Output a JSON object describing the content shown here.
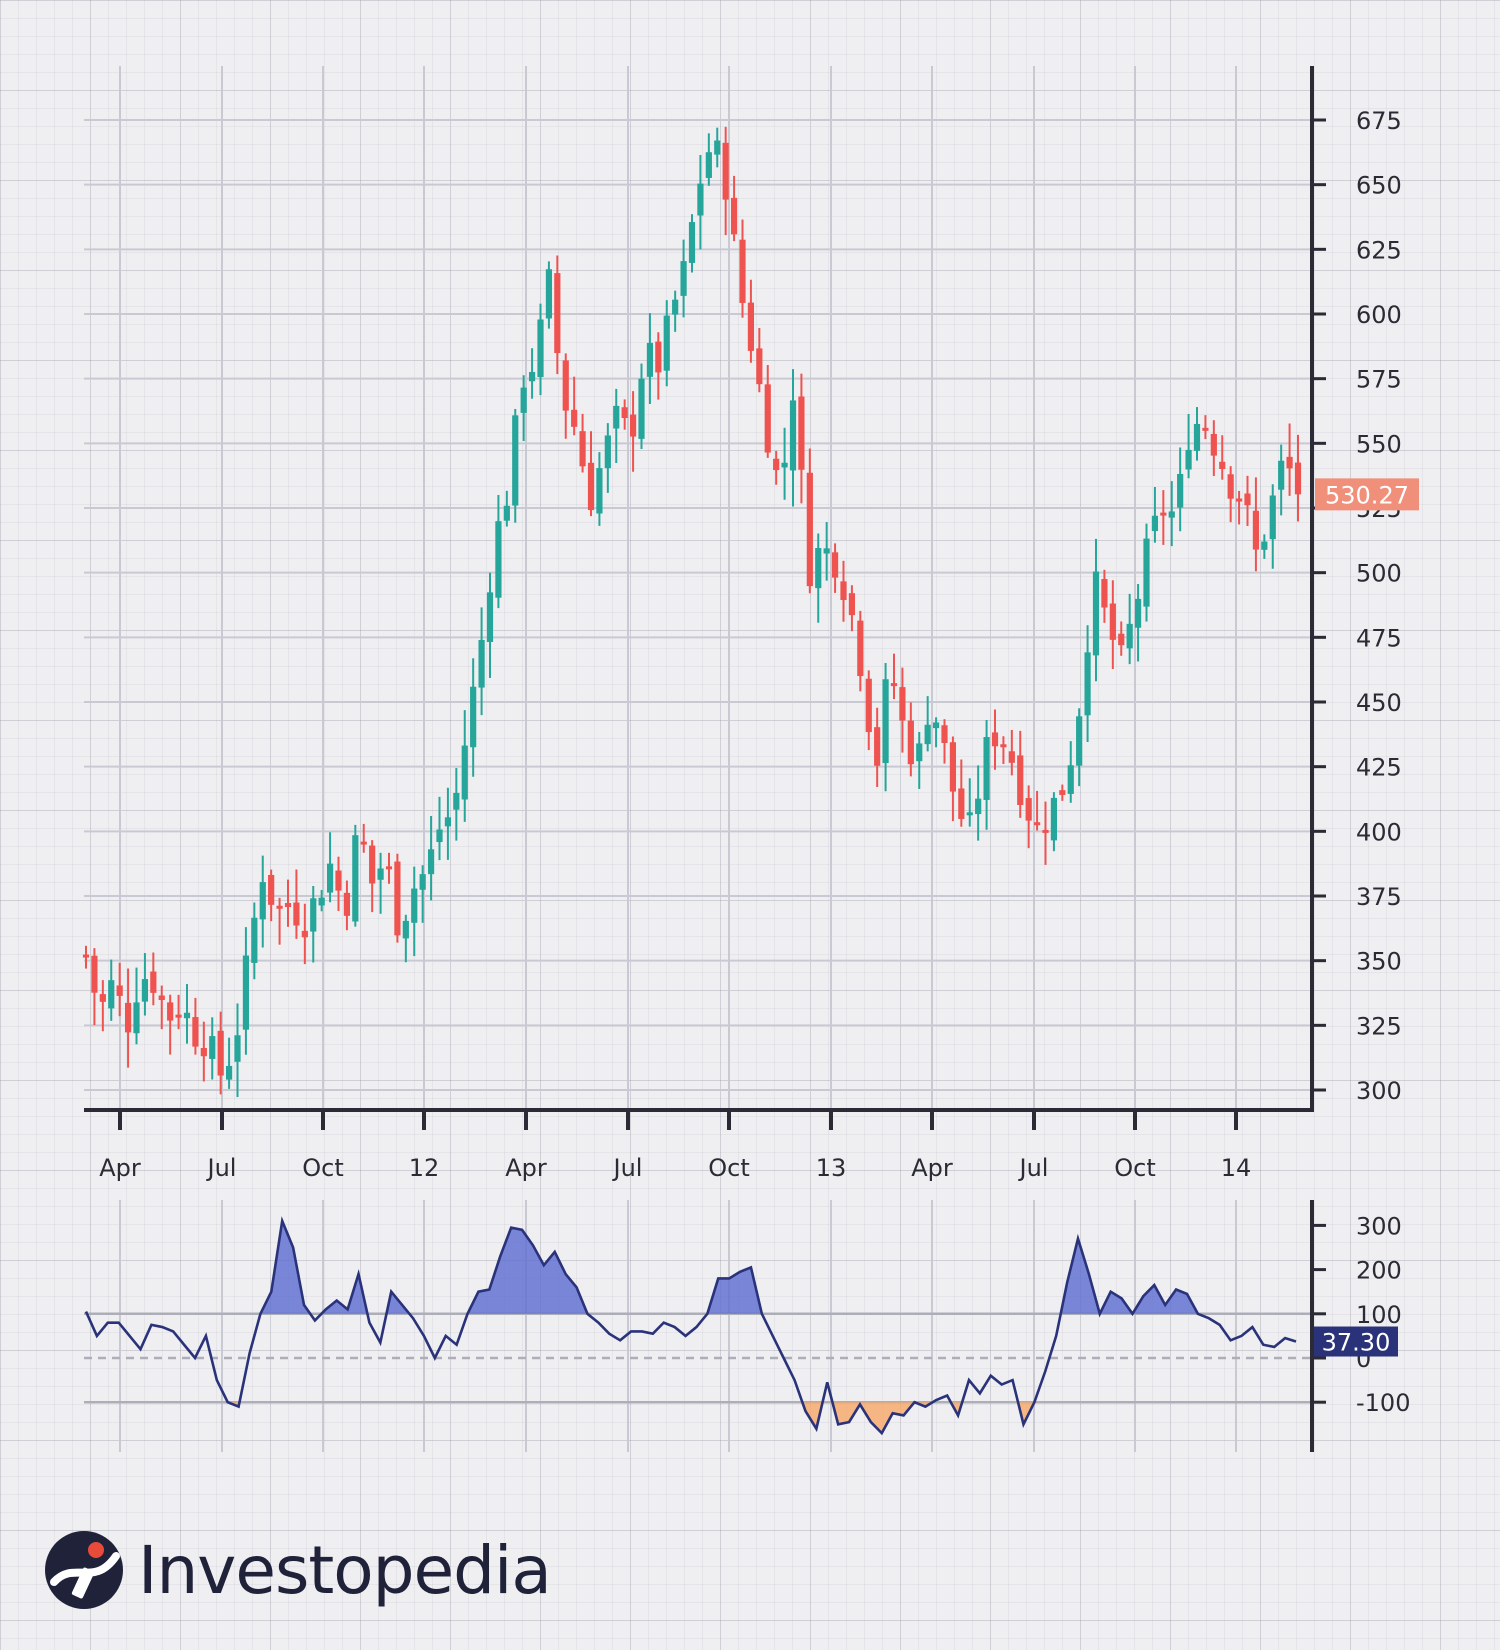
{
  "brand": {
    "name": "Investopedia"
  },
  "colors": {
    "up": "#26a69a",
    "down": "#ef5350",
    "cci_line": "#2a337a",
    "cci_fill_pos": "#5b6bd1",
    "cci_fill_neg": "#f7a766",
    "price_badge": "#f0907a",
    "cci_badge": "#2a337a",
    "axis": "#2b2b35"
  },
  "chart_data": [
    {
      "type": "candlestick",
      "title": "",
      "x_tick_labels": [
        "Apr",
        "Jul",
        "Oct",
        "12",
        "Apr",
        "Jul",
        "Oct",
        "13",
        "Apr",
        "Jul",
        "Oct",
        "14"
      ],
      "y_ticks": [
        300,
        325,
        350,
        375,
        400,
        425,
        450,
        475,
        500,
        525,
        550,
        575,
        600,
        625,
        650,
        675
      ],
      "ylim": [
        292,
        696
      ],
      "last_price_label": "530.27",
      "last_price": 530.27,
      "grid": true,
      "close_series": [
        [
          0,
          352
        ],
        [
          1,
          330
        ],
        [
          2,
          342
        ],
        [
          3,
          325
        ],
        [
          4,
          345
        ],
        [
          5,
          342
        ],
        [
          6,
          328
        ],
        [
          7,
          333
        ],
        [
          8,
          322
        ],
        [
          9,
          318
        ],
        [
          10,
          305
        ],
        [
          11,
          320
        ],
        [
          12,
          355
        ],
        [
          13,
          385
        ],
        [
          14,
          368
        ],
        [
          15,
          372
        ],
        [
          16,
          365
        ],
        [
          17,
          375
        ],
        [
          18,
          388
        ],
        [
          19,
          368
        ],
        [
          20,
          402
        ],
        [
          21,
          380
        ],
        [
          22,
          390
        ],
        [
          23,
          362
        ],
        [
          24,
          378
        ],
        [
          25,
          385
        ],
        [
          26,
          402
        ],
        [
          27,
          408
        ],
        [
          28,
          440
        ],
        [
          29,
          472
        ],
        [
          30,
          512
        ],
        [
          31,
          532
        ],
        [
          32,
          575
        ],
        [
          33,
          582
        ],
        [
          34,
          612
        ],
        [
          35,
          568
        ],
        [
          36,
          555
        ],
        [
          37,
          528
        ],
        [
          38,
          545
        ],
        [
          39,
          560
        ],
        [
          40,
          552
        ],
        [
          41,
          585
        ],
        [
          42,
          580
        ],
        [
          43,
          600
        ],
        [
          44,
          618
        ],
        [
          45,
          650
        ],
        [
          46,
          668
        ],
        [
          47,
          650
        ],
        [
          48,
          610
        ],
        [
          49,
          585
        ],
        [
          50,
          555
        ],
        [
          51,
          530
        ],
        [
          52,
          575
        ],
        [
          53,
          500
        ],
        [
          54,
          510
        ],
        [
          55,
          505
        ],
        [
          56,
          490
        ],
        [
          57,
          462
        ],
        [
          58,
          424
        ],
        [
          59,
          465
        ],
        [
          60,
          440
        ],
        [
          61,
          425
        ],
        [
          62,
          452
        ],
        [
          63,
          432
        ],
        [
          64,
          408
        ],
        [
          65,
          400
        ],
        [
          66,
          430
        ],
        [
          67,
          440
        ],
        [
          68,
          428
        ],
        [
          69,
          410
        ],
        [
          70,
          400
        ],
        [
          71,
          410
        ],
        [
          72,
          420
        ],
        [
          73,
          450
        ],
        [
          74,
          497
        ],
        [
          75,
          480
        ],
        [
          76,
          465
        ],
        [
          77,
          485
        ],
        [
          78,
          510
        ],
        [
          79,
          525
        ],
        [
          80,
          522
        ],
        [
          81,
          555
        ],
        [
          82,
          560
        ],
        [
          83,
          548
        ],
        [
          84,
          535
        ],
        [
          85,
          528
        ],
        [
          86,
          505
        ],
        [
          87,
          525
        ],
        [
          88,
          545
        ],
        [
          89,
          530
        ]
      ]
    },
    {
      "type": "line",
      "title": "",
      "y_ticks": [
        -100,
        0,
        100,
        200,
        300
      ],
      "ylim": [
        -210,
        360
      ],
      "reference_lines": [
        100,
        0,
        -100
      ],
      "last_value_label": "37.30",
      "last_value": 37.3,
      "series": [
        [
          0,
          105
        ],
        [
          1,
          50
        ],
        [
          2,
          80
        ],
        [
          3,
          80
        ],
        [
          4,
          50
        ],
        [
          5,
          20
        ],
        [
          6,
          75
        ],
        [
          7,
          70
        ],
        [
          8,
          60
        ],
        [
          9,
          30
        ],
        [
          10,
          0
        ],
        [
          11,
          50
        ],
        [
          12,
          -50
        ],
        [
          13,
          -100
        ],
        [
          14,
          -110
        ],
        [
          15,
          10
        ],
        [
          16,
          100
        ],
        [
          17,
          150
        ],
        [
          18,
          310
        ],
        [
          19,
          250
        ],
        [
          20,
          120
        ],
        [
          21,
          85
        ],
        [
          22,
          110
        ],
        [
          23,
          130
        ],
        [
          24,
          110
        ],
        [
          25,
          190
        ],
        [
          26,
          80
        ],
        [
          27,
          35
        ],
        [
          28,
          150
        ],
        [
          29,
          120
        ],
        [
          30,
          90
        ],
        [
          31,
          50
        ],
        [
          32,
          0
        ],
        [
          33,
          50
        ],
        [
          34,
          30
        ],
        [
          35,
          100
        ],
        [
          36,
          150
        ],
        [
          37,
          155
        ],
        [
          38,
          230
        ],
        [
          39,
          295
        ],
        [
          40,
          290
        ],
        [
          41,
          255
        ],
        [
          42,
          210
        ],
        [
          43,
          240
        ],
        [
          44,
          190
        ],
        [
          45,
          160
        ],
        [
          46,
          100
        ],
        [
          47,
          80
        ],
        [
          48,
          55
        ],
        [
          49,
          40
        ],
        [
          50,
          60
        ],
        [
          51,
          60
        ],
        [
          52,
          55
        ],
        [
          53,
          80
        ],
        [
          54,
          70
        ],
        [
          55,
          50
        ],
        [
          56,
          70
        ],
        [
          57,
          100
        ],
        [
          58,
          180
        ],
        [
          59,
          180
        ],
        [
          60,
          195
        ],
        [
          61,
          205
        ],
        [
          62,
          100
        ],
        [
          63,
          50
        ],
        [
          64,
          0
        ],
        [
          65,
          -50
        ],
        [
          66,
          -120
        ],
        [
          67,
          -160
        ],
        [
          68,
          -55
        ],
        [
          69,
          -150
        ],
        [
          70,
          -145
        ],
        [
          71,
          -105
        ],
        [
          72,
          -145
        ],
        [
          73,
          -170
        ],
        [
          74,
          -125
        ],
        [
          75,
          -130
        ],
        [
          76,
          -100
        ],
        [
          77,
          -110
        ],
        [
          78,
          -95
        ],
        [
          79,
          -85
        ],
        [
          80,
          -130
        ],
        [
          81,
          -50
        ],
        [
          82,
          -80
        ],
        [
          83,
          -40
        ],
        [
          84,
          -60
        ],
        [
          85,
          -50
        ],
        [
          86,
          -150
        ],
        [
          87,
          -100
        ],
        [
          88,
          -30
        ],
        [
          89,
          50
        ],
        [
          90,
          170
        ],
        [
          91,
          270
        ],
        [
          92,
          190
        ],
        [
          93,
          100
        ],
        [
          94,
          150
        ],
        [
          95,
          135
        ],
        [
          96,
          100
        ],
        [
          97,
          140
        ],
        [
          98,
          165
        ],
        [
          99,
          120
        ],
        [
          100,
          155
        ],
        [
          101,
          145
        ],
        [
          102,
          100
        ],
        [
          103,
          90
        ],
        [
          104,
          75
        ],
        [
          105,
          40
        ],
        [
          106,
          50
        ],
        [
          107,
          70
        ],
        [
          108,
          30
        ],
        [
          109,
          25
        ],
        [
          110,
          45
        ],
        [
          111,
          37.3
        ]
      ]
    }
  ]
}
